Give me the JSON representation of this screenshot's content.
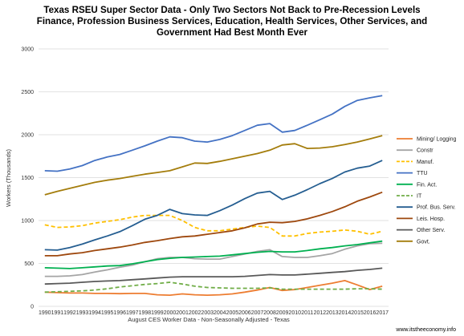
{
  "chart_data": {
    "type": "line",
    "title_lines": [
      "Texas RSEU Super Sector Data - Only Two Sectors Not Back to Pre-Recession Levels",
      "Finance, Profession Business Services, Education, Health Services, Other Services, and",
      "Government Had Best Month Ever"
    ],
    "xlabel": "August CES Worker Data - Non-Seasonally Adjusted - Texas",
    "ylabel": "Workers (Thousands)",
    "source": "www.itstheeconomy.info",
    "ylim": [
      0,
      3000
    ],
    "yticks": [
      0,
      500,
      1000,
      1500,
      2000,
      2500,
      3000
    ],
    "x": [
      "1990",
      "1991",
      "1992",
      "1993",
      "1994",
      "1995",
      "1996",
      "1997",
      "1998",
      "1999",
      "2000",
      "2001",
      "2002",
      "2003",
      "2004",
      "2005",
      "2006",
      "2007",
      "2008",
      "2009",
      "2010",
      "2011",
      "2012",
      "2013",
      "2014",
      "2015",
      "2016",
      "2017"
    ],
    "grid": "horizontal",
    "legend_position": "right",
    "series": [
      {
        "name": "Mining/ Logging",
        "color": "#ed7d31",
        "dash": "solid",
        "values": [
          165,
          160,
          155,
          155,
          150,
          150,
          148,
          150,
          150,
          135,
          130,
          145,
          135,
          130,
          135,
          145,
          165,
          190,
          220,
          185,
          195,
          220,
          245,
          270,
          300,
          250,
          195,
          235
        ]
      },
      {
        "name": "Constr",
        "color": "#a5a5a5",
        "dash": "solid",
        "values": [
          350,
          350,
          355,
          370,
          400,
          425,
          455,
          480,
          520,
          555,
          570,
          570,
          555,
          550,
          550,
          580,
          610,
          640,
          660,
          580,
          570,
          570,
          590,
          615,
          665,
          705,
          730,
          735
        ]
      },
      {
        "name": "Manuf.",
        "color": "#ffc000",
        "dash": "dashed",
        "values": [
          950,
          920,
          925,
          940,
          970,
          990,
          1010,
          1040,
          1060,
          1060,
          1060,
          1000,
          920,
          880,
          880,
          900,
          920,
          935,
          920,
          820,
          820,
          850,
          865,
          875,
          890,
          875,
          840,
          875
        ]
      },
      {
        "name": "TTU",
        "color": "#4472c4",
        "dash": "solid",
        "values": [
          1580,
          1575,
          1600,
          1640,
          1700,
          1740,
          1770,
          1820,
          1870,
          1925,
          1975,
          1965,
          1925,
          1915,
          1945,
          1990,
          2050,
          2110,
          2130,
          2030,
          2050,
          2110,
          2175,
          2240,
          2330,
          2400,
          2430,
          2455
        ]
      },
      {
        "name": "Fin. Act.",
        "color": "#00b050",
        "dash": "solid",
        "values": [
          450,
          445,
          440,
          450,
          460,
          470,
          475,
          495,
          520,
          545,
          560,
          570,
          575,
          580,
          585,
          600,
          615,
          630,
          640,
          635,
          635,
          650,
          670,
          685,
          705,
          720,
          740,
          760
        ]
      },
      {
        "name": "IT",
        "color": "#70ad47",
        "dash": "dashed",
        "values": [
          165,
          170,
          175,
          180,
          190,
          205,
          225,
          240,
          255,
          265,
          280,
          260,
          235,
          220,
          215,
          210,
          210,
          210,
          215,
          200,
          200,
          200,
          200,
          200,
          200,
          205,
          205,
          200
        ]
      },
      {
        "name": "Prof. Bus. Serv.",
        "color": "#255e91",
        "dash": "solid",
        "values": [
          660,
          655,
          685,
          725,
          775,
          820,
          870,
          940,
          1015,
          1060,
          1130,
          1080,
          1065,
          1060,
          1115,
          1180,
          1255,
          1320,
          1340,
          1245,
          1295,
          1360,
          1430,
          1490,
          1565,
          1610,
          1635,
          1700
        ]
      },
      {
        "name": "Leis. Hosp.",
        "color": "#9e480e",
        "dash": "solid",
        "values": [
          590,
          590,
          610,
          625,
          650,
          670,
          690,
          715,
          745,
          765,
          790,
          810,
          820,
          840,
          860,
          880,
          915,
          960,
          980,
          975,
          990,
          1020,
          1060,
          1105,
          1160,
          1225,
          1275,
          1330
        ]
      },
      {
        "name": "Other Serv.",
        "color": "#595959",
        "dash": "solid",
        "values": [
          260,
          265,
          270,
          280,
          290,
          295,
          300,
          310,
          320,
          330,
          340,
          345,
          345,
          345,
          345,
          345,
          350,
          360,
          370,
          365,
          365,
          375,
          385,
          395,
          405,
          420,
          430,
          445
        ]
      },
      {
        "name": "Govt.",
        "color": "#a47d0c",
        "dash": "solid",
        "values": [
          1300,
          1340,
          1375,
          1410,
          1445,
          1470,
          1490,
          1515,
          1540,
          1560,
          1580,
          1625,
          1670,
          1665,
          1690,
          1720,
          1750,
          1780,
          1820,
          1880,
          1895,
          1840,
          1845,
          1860,
          1885,
          1915,
          1950,
          1990
        ]
      }
    ]
  }
}
